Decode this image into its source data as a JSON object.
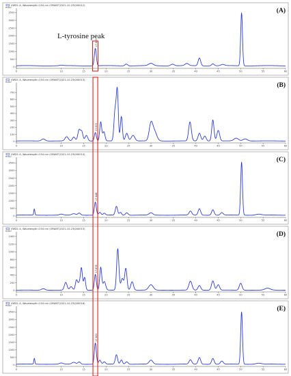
{
  "chart_data": {
    "type": "line",
    "annotation": "L-tyrosine peak",
    "highlight_x": 17.6,
    "x_range": [
      0,
      60
    ],
    "x_ticks": [
      "0",
      "10",
      "15",
      "20",
      "25",
      "30",
      "35",
      "40",
      "45",
      "50",
      "55",
      "60"
    ],
    "highlight_color": "#e0221c",
    "trace_color": "#2a3bd8",
    "panels": [
      {
        "label": "(A)",
        "header": "VWD1 A, Wavelength=254 nm (ORANT\\2021-10-23\\000012)",
        "y_unit": "mAU",
        "y_ticks": [
          "0",
          "500",
          "1000",
          "1500",
          "2000",
          "2500",
          "3000",
          "3500"
        ],
        "ymax": 3600,
        "peak_label": "17.600",
        "baseline": 80,
        "peaks": [
          [
            17.6,
            1120,
            0.22
          ],
          [
            10.0,
            30,
            0.4
          ],
          [
            24.5,
            120,
            0.3
          ],
          [
            30.0,
            150,
            0.5
          ],
          [
            34.8,
            110,
            0.4
          ],
          [
            38.0,
            140,
            0.4
          ],
          [
            40.8,
            500,
            0.28
          ],
          [
            43.8,
            130,
            0.3
          ],
          [
            46.0,
            80,
            0.4
          ],
          [
            50.2,
            3400,
            0.2
          ]
        ]
      },
      {
        "label": "(B)",
        "header": "VWD1 A, Wavelength=254 nm (ORANT\\2021-10-23\\000013)",
        "y_unit": "mAU",
        "y_ticks": [
          "0",
          "100",
          "200",
          "300",
          "400",
          "500",
          "600",
          "700"
        ],
        "ymax": 800,
        "peak_label": "17.672",
        "baseline": 8,
        "peaks": [
          [
            6.0,
            30,
            0.4
          ],
          [
            11.2,
            60,
            0.35
          ],
          [
            12.8,
            55,
            0.3
          ],
          [
            14.0,
            160,
            0.3
          ],
          [
            14.6,
            120,
            0.25
          ],
          [
            15.6,
            80,
            0.3
          ],
          [
            17.6,
            120,
            0.22
          ],
          [
            18.8,
            270,
            0.22
          ],
          [
            19.5,
            130,
            0.25
          ],
          [
            22.0,
            430,
            0.25
          ],
          [
            22.5,
            700,
            0.22
          ],
          [
            23.4,
            350,
            0.22
          ],
          [
            24.6,
            110,
            0.3
          ],
          [
            26.0,
            80,
            0.4
          ],
          [
            30.0,
            240,
            0.4
          ],
          [
            30.8,
            130,
            0.5
          ],
          [
            38.7,
            270,
            0.3
          ],
          [
            40.8,
            110,
            0.3
          ],
          [
            42.0,
            70,
            0.3
          ],
          [
            43.8,
            300,
            0.25
          ],
          [
            45.0,
            150,
            0.3
          ],
          [
            49.0,
            40,
            0.5
          ],
          [
            51.0,
            30,
            0.5
          ]
        ]
      },
      {
        "label": "(C)",
        "header": "VWD1 A, Wavelength=254 nm (ORANT\\2021-10-23\\000014)",
        "y_unit": "mAU",
        "y_ticks": [
          "0",
          "500",
          "1000",
          "1500",
          "2000",
          "2500",
          "3000",
          "3500"
        ],
        "ymax": 3700,
        "peak_label": "17.648",
        "baseline": 60,
        "peaks": [
          [
            4.0,
            400,
            0.12
          ],
          [
            10.0,
            60,
            0.4
          ],
          [
            12.8,
            90,
            0.4
          ],
          [
            14.0,
            140,
            0.3
          ],
          [
            17.6,
            860,
            0.22
          ],
          [
            18.6,
            180,
            0.25
          ],
          [
            19.6,
            120,
            0.25
          ],
          [
            22.3,
            580,
            0.25
          ],
          [
            23.2,
            180,
            0.25
          ],
          [
            24.6,
            160,
            0.3
          ],
          [
            30.0,
            150,
            0.4
          ],
          [
            38.8,
            260,
            0.3
          ],
          [
            40.8,
            420,
            0.28
          ],
          [
            43.8,
            360,
            0.28
          ],
          [
            45.8,
            160,
            0.3
          ],
          [
            50.2,
            3500,
            0.2
          ],
          [
            54.0,
            60,
            0.6
          ]
        ]
      },
      {
        "label": "(D)",
        "header": "VWD1 A, Wavelength=254 nm (ORANT\\2021-10-23\\000015)",
        "y_unit": "mAU",
        "y_ticks": [
          "0",
          "200",
          "400",
          "600",
          "800",
          "1000",
          "1200",
          "1400"
        ],
        "ymax": 1450,
        "peak_label": "17.678",
        "baseline": 10,
        "peaks": [
          [
            6.0,
            40,
            0.4
          ],
          [
            11.0,
            200,
            0.3
          ],
          [
            12.2,
            90,
            0.3
          ],
          [
            13.4,
            260,
            0.25
          ],
          [
            14.0,
            170,
            0.25
          ],
          [
            14.5,
            560,
            0.22
          ],
          [
            15.2,
            330,
            0.22
          ],
          [
            17.6,
            410,
            0.22
          ],
          [
            18.8,
            590,
            0.22
          ],
          [
            19.6,
            220,
            0.3
          ],
          [
            22.6,
            1070,
            0.25
          ],
          [
            23.6,
            300,
            0.3
          ],
          [
            24.4,
            560,
            0.25
          ],
          [
            25.8,
            220,
            0.3
          ],
          [
            30.0,
            140,
            0.5
          ],
          [
            38.8,
            230,
            0.35
          ],
          [
            40.8,
            120,
            0.3
          ],
          [
            43.8,
            240,
            0.3
          ],
          [
            45.0,
            140,
            0.3
          ],
          [
            50.0,
            180,
            0.3
          ],
          [
            56.0,
            50,
            0.6
          ]
        ]
      },
      {
        "label": "(E)",
        "header": "VWD1 A, Wavelength=254 nm (ORANT\\2021-10-23\\000016)",
        "y_unit": "mAU",
        "y_ticks": [
          "0",
          "500",
          "1000",
          "1500",
          "2000",
          "2500",
          "3000",
          "3500"
        ],
        "ymax": 3700,
        "peak_label": "17.600",
        "baseline": 60,
        "peaks": [
          [
            4.0,
            380,
            0.12
          ],
          [
            10.0,
            70,
            0.4
          ],
          [
            12.8,
            120,
            0.4
          ],
          [
            14.0,
            150,
            0.3
          ],
          [
            17.6,
            1400,
            0.22
          ],
          [
            18.6,
            260,
            0.25
          ],
          [
            19.6,
            150,
            0.25
          ],
          [
            22.3,
            620,
            0.25
          ],
          [
            23.4,
            280,
            0.25
          ],
          [
            24.6,
            160,
            0.3
          ],
          [
            30.0,
            260,
            0.4
          ],
          [
            38.8,
            280,
            0.3
          ],
          [
            40.8,
            440,
            0.28
          ],
          [
            43.8,
            380,
            0.28
          ],
          [
            45.8,
            200,
            0.3
          ],
          [
            50.2,
            3450,
            0.2
          ],
          [
            54.0,
            60,
            0.6
          ]
        ]
      }
    ]
  }
}
